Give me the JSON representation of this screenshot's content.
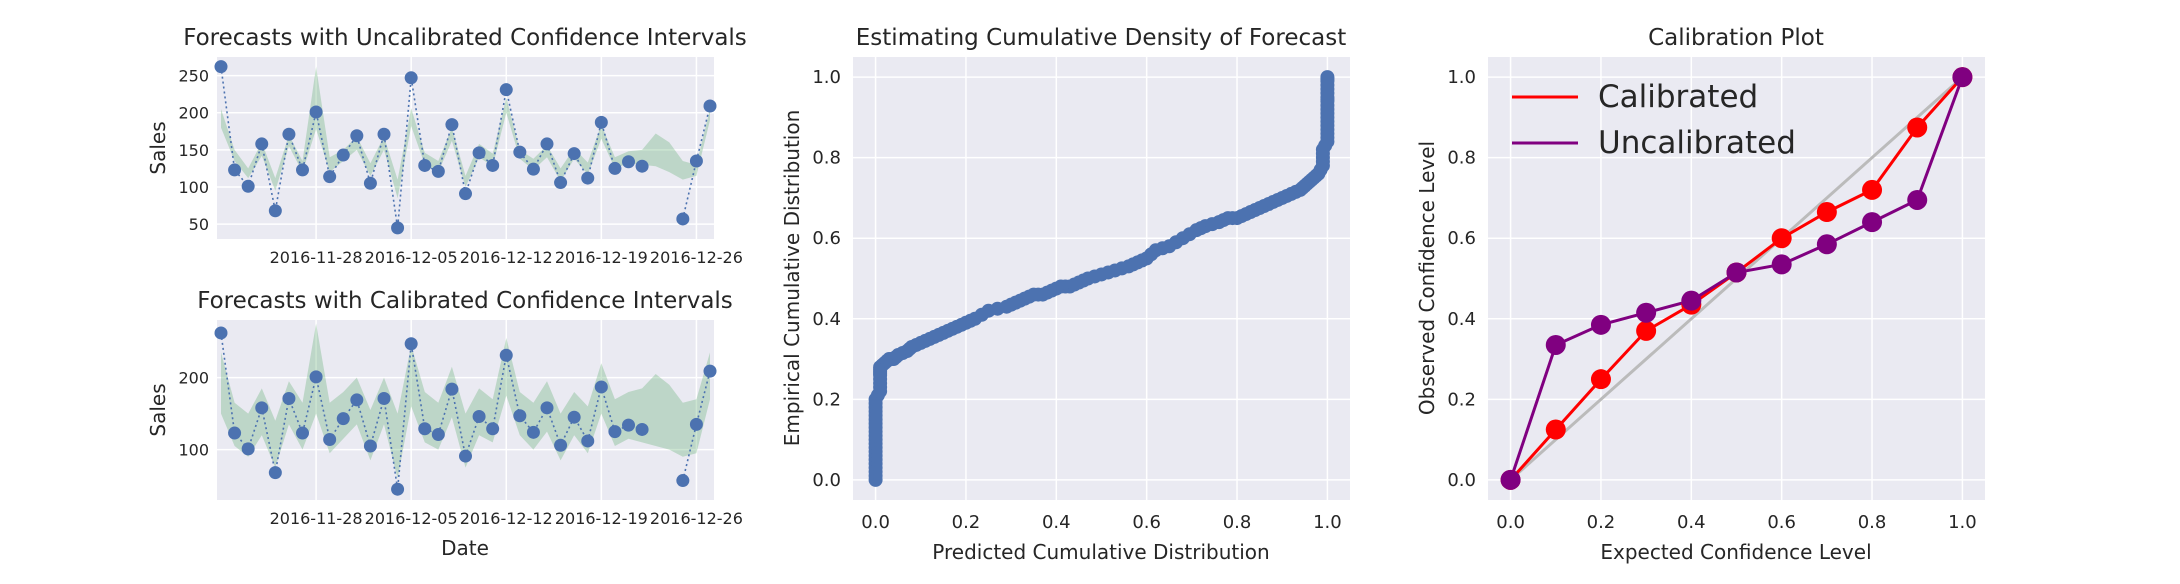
{
  "chart_data": [
    {
      "type": "line",
      "title": "Forecasts with Uncalibrated Confidence Intervals",
      "xlabel": "",
      "ylabel": "Sales",
      "x_tick_labels": [
        "2016-11-28",
        "2016-12-05",
        "2016-12-12",
        "2016-12-19",
        "2016-12-26"
      ],
      "y_ticks": [
        50,
        100,
        150,
        200,
        250
      ],
      "ylim": [
        30,
        275
      ],
      "grid": true,
      "x": [
        "2016-11-21",
        "2016-11-22",
        "2016-11-23",
        "2016-11-24",
        "2016-11-25",
        "2016-11-26",
        "2016-11-27",
        "2016-11-28",
        "2016-11-29",
        "2016-11-30",
        "2016-12-01",
        "2016-12-02",
        "2016-12-03",
        "2016-12-04",
        "2016-12-05",
        "2016-12-06",
        "2016-12-07",
        "2016-12-08",
        "2016-12-09",
        "2016-12-10",
        "2016-12-11",
        "2016-12-12",
        "2016-12-13",
        "2016-12-14",
        "2016-12-15",
        "2016-12-16",
        "2016-12-17",
        "2016-12-18",
        "2016-12-19",
        "2016-12-20",
        "2016-12-21",
        "2016-12-22",
        "2016-12-23",
        "2016-12-24",
        "2016-12-25",
        "2016-12-26",
        "2016-12-27"
      ],
      "series": [
        {
          "values": [
            262,
            123,
            101,
            158,
            68,
            171,
            123,
            201,
            114,
            143,
            169,
            105,
            171,
            45,
            247,
            129,
            121,
            184,
            91,
            146,
            129,
            231,
            147,
            124,
            158,
            106,
            145,
            112,
            187,
            125,
            134,
            128,
            null,
            null,
            57,
            135,
            209
          ]
        }
      ],
      "band": {
        "lower": [
          180,
          135,
          112,
          142,
          95,
          155,
          120,
          178,
          120,
          135,
          150,
          115,
          150,
          85,
          182,
          130,
          120,
          162,
          100,
          140,
          128,
          200,
          138,
          123,
          140,
          108,
          138,
          117,
          165,
          125,
          132,
          130,
          128,
          120,
          110,
          115,
          190
        ],
        "upper": [
          205,
          150,
          125,
          160,
          112,
          170,
          135,
          262,
          140,
          150,
          168,
          132,
          168,
          110,
          206,
          146,
          135,
          180,
          115,
          158,
          145,
          220,
          150,
          138,
          156,
          125,
          152,
          133,
          184,
          140,
          148,
          150,
          172,
          160,
          135,
          130,
          205
        ]
      },
      "colors": {
        "points": "#4c72b0",
        "band": "#55a868",
        "background": "#eaeaf2"
      }
    },
    {
      "type": "line",
      "title": "Forecasts with Calibrated Confidence Intervals",
      "xlabel": "Date",
      "ylabel": "Sales",
      "x_tick_labels": [
        "2016-11-28",
        "2016-12-05",
        "2016-12-12",
        "2016-12-19",
        "2016-12-26"
      ],
      "y_ticks": [
        100,
        200
      ],
      "ylim": [
        30,
        280
      ],
      "grid": true,
      "x": [
        "2016-11-21",
        "2016-11-22",
        "2016-11-23",
        "2016-11-24",
        "2016-11-25",
        "2016-11-26",
        "2016-11-27",
        "2016-11-28",
        "2016-11-29",
        "2016-11-30",
        "2016-12-01",
        "2016-12-02",
        "2016-12-03",
        "2016-12-04",
        "2016-12-05",
        "2016-12-06",
        "2016-12-07",
        "2016-12-08",
        "2016-12-09",
        "2016-12-10",
        "2016-12-11",
        "2016-12-12",
        "2016-12-13",
        "2016-12-14",
        "2016-12-15",
        "2016-12-16",
        "2016-12-17",
        "2016-12-18",
        "2016-12-19",
        "2016-12-20",
        "2016-12-21",
        "2016-12-22",
        "2016-12-23",
        "2016-12-24",
        "2016-12-25",
        "2016-12-26",
        "2016-12-27"
      ],
      "series": [
        {
          "values": [
            262,
            123,
            101,
            158,
            68,
            171,
            123,
            201,
            114,
            143,
            169,
            105,
            171,
            45,
            247,
            129,
            121,
            184,
            91,
            146,
            129,
            231,
            147,
            124,
            158,
            106,
            145,
            112,
            187,
            125,
            134,
            128,
            null,
            null,
            57,
            135,
            209
          ]
        }
      ],
      "band": {
        "lower": [
          150,
          105,
          90,
          120,
          75,
          135,
          100,
          150,
          95,
          115,
          135,
          85,
          135,
          60,
          160,
          110,
          100,
          145,
          75,
          120,
          110,
          175,
          120,
          100,
          125,
          85,
          120,
          95,
          150,
          105,
          115,
          110,
          105,
          100,
          90,
          95,
          170
        ],
        "upper": [
          235,
          165,
          150,
          185,
          140,
          195,
          165,
          275,
          165,
          180,
          200,
          155,
          200,
          150,
          245,
          180,
          165,
          215,
          150,
          185,
          170,
          255,
          180,
          165,
          195,
          150,
          180,
          160,
          220,
          170,
          180,
          185,
          205,
          190,
          165,
          170,
          235
        ]
      },
      "colors": {
        "points": "#4c72b0",
        "band": "#55a868",
        "background": "#eaeaf2"
      }
    },
    {
      "type": "scatter",
      "title": "Estimating Cumulative Density of Forecast",
      "xlabel": "Predicted Cumulative Distribution",
      "ylabel": "Empirical Cumulative Distribution",
      "x_ticks": [
        0.0,
        0.2,
        0.4,
        0.6,
        0.8,
        1.0
      ],
      "y_ticks": [
        0.0,
        0.2,
        0.4,
        0.6,
        0.8,
        1.0
      ],
      "xlim": [
        -0.05,
        1.05
      ],
      "ylim": [
        -0.05,
        1.05
      ],
      "grid": true,
      "x": [
        0.0,
        0.0,
        0.0,
        0.0,
        0.0,
        0.0,
        0.0,
        0.0,
        0.0,
        0.0,
        0.0,
        0.01,
        0.01,
        0.01,
        0.01,
        0.01,
        0.02,
        0.03,
        0.04,
        0.05,
        0.07,
        0.08,
        0.1,
        0.12,
        0.14,
        0.16,
        0.18,
        0.2,
        0.22,
        0.25,
        0.29,
        0.31,
        0.33,
        0.35,
        0.37,
        0.39,
        0.41,
        0.43,
        0.45,
        0.47,
        0.5,
        0.53,
        0.56,
        0.58,
        0.6,
        0.62,
        0.65,
        0.68,
        0.71,
        0.73,
        0.76,
        0.78,
        0.8,
        0.82,
        0.84,
        0.86,
        0.88,
        0.9,
        0.92,
        0.94,
        0.95,
        0.96,
        0.97,
        0.98,
        0.99,
        0.99,
        0.99,
        1.0,
        1.0,
        1.0,
        1.0,
        1.0,
        1.0,
        1.0,
        1.0,
        1.0,
        1.0
      ],
      "y": [
        0.0,
        0.02,
        0.04,
        0.06,
        0.08,
        0.1,
        0.12,
        0.14,
        0.16,
        0.18,
        0.2,
        0.22,
        0.24,
        0.26,
        0.27,
        0.28,
        0.29,
        0.3,
        0.3,
        0.31,
        0.32,
        0.33,
        0.34,
        0.35,
        0.36,
        0.37,
        0.38,
        0.39,
        0.4,
        0.42,
        0.43,
        0.44,
        0.45,
        0.46,
        0.46,
        0.47,
        0.48,
        0.48,
        0.49,
        0.5,
        0.51,
        0.52,
        0.53,
        0.54,
        0.55,
        0.57,
        0.58,
        0.6,
        0.62,
        0.63,
        0.64,
        0.65,
        0.65,
        0.66,
        0.67,
        0.68,
        0.69,
        0.7,
        0.71,
        0.72,
        0.73,
        0.74,
        0.75,
        0.76,
        0.78,
        0.8,
        0.82,
        0.84,
        0.86,
        0.88,
        0.9,
        0.92,
        0.94,
        0.95,
        0.97,
        0.99,
        1.0
      ],
      "colors": {
        "points": "#4c72b0",
        "background": "#eaeaf2"
      }
    },
    {
      "type": "line",
      "title": "Calibration Plot",
      "xlabel": "Expected Confidence Level",
      "ylabel": "Observed Confidence Level",
      "x_ticks": [
        0.0,
        0.2,
        0.4,
        0.6,
        0.8,
        1.0
      ],
      "y_ticks": [
        0.0,
        0.2,
        0.4,
        0.6,
        0.8,
        1.0
      ],
      "xlim": [
        -0.05,
        1.05
      ],
      "ylim": [
        -0.05,
        1.05
      ],
      "grid": true,
      "legend_position": "top-left",
      "x": [
        0.0,
        0.1,
        0.2,
        0.3,
        0.4,
        0.5,
        0.6,
        0.7,
        0.8,
        0.9,
        1.0
      ],
      "reference_line": [
        [
          0.0,
          0.0
        ],
        [
          1.0,
          1.0
        ]
      ],
      "series": [
        {
          "name": "Calibrated",
          "values": [
            0.0,
            0.125,
            0.25,
            0.37,
            0.435,
            0.515,
            0.6,
            0.665,
            0.72,
            0.875,
            1.0
          ],
          "color": "#ff0000"
        },
        {
          "name": "Uncalibrated",
          "values": [
            0.0,
            0.335,
            0.385,
            0.415,
            0.445,
            0.515,
            0.535,
            0.585,
            0.64,
            0.695,
            1.0
          ],
          "color": "#800080"
        }
      ],
      "colors": {
        "reference": "#bbbbbb",
        "background": "#eaeaf2"
      }
    }
  ]
}
